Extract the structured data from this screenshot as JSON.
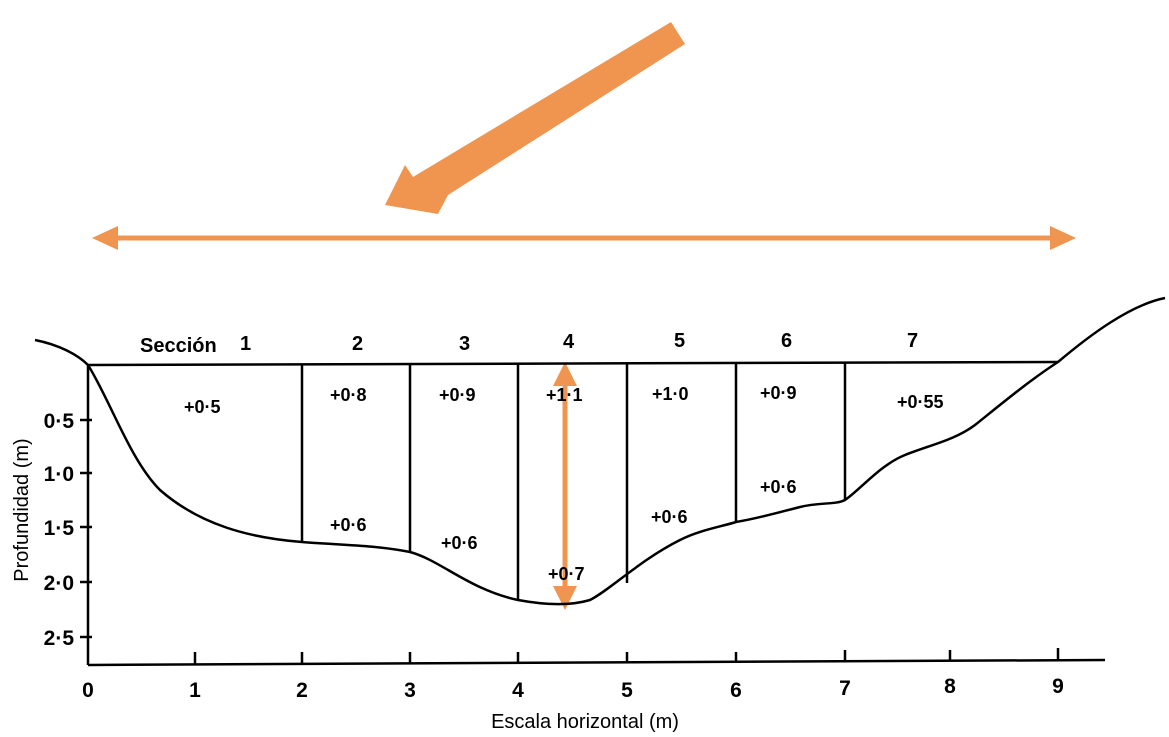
{
  "section_prefix": "Sección",
  "section_labels": [
    "1",
    "2",
    "3",
    "4",
    "5",
    "6",
    "7"
  ],
  "velocity_labels": [
    "+0·5",
    "+0·8",
    "+0·9",
    "+1·1",
    "+1·0",
    "+0·9",
    "+0·55",
    "+0·6",
    "+0·6",
    "+0·7",
    "+0·6",
    "+0·6"
  ],
  "x_axis": {
    "title": "Escala horizontal (m)",
    "ticks": [
      "0",
      "1",
      "2",
      "3",
      "4",
      "5",
      "6",
      "7",
      "8",
      "9"
    ]
  },
  "y_axis": {
    "title": "Profundidad (m)",
    "ticks": [
      "0·5",
      "1·0",
      "1·5",
      "2·0",
      "2·5"
    ]
  },
  "colors": {
    "arrow": "#F0954F",
    "ink": "#000000"
  }
}
